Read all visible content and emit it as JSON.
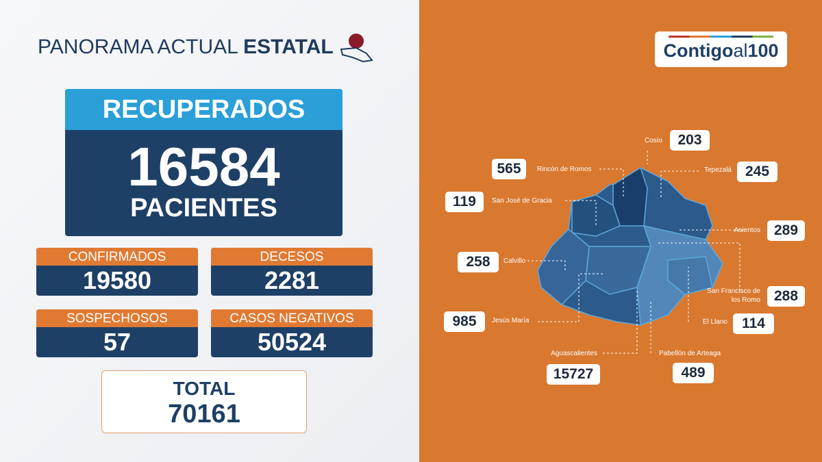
{
  "header": {
    "title_light": "PANORAMA ACTUAL",
    "title_bold": "ESTATAL"
  },
  "recuperados": {
    "label": "RECUPERADOS",
    "value": 16584,
    "unit": "PACIENTES"
  },
  "stats": [
    {
      "label": "CONFIRMADOS",
      "value": 19580
    },
    {
      "label": "DECESOS",
      "value": 2281
    },
    {
      "label": "SOSPECHOSOS",
      "value": 57
    },
    {
      "label": "CASOS NEGATIVOS",
      "value": 50524
    }
  ],
  "total": {
    "label": "TOTAL",
    "value": 70161
  },
  "logo": {
    "parts": [
      "Contigo",
      "al",
      "100"
    ]
  },
  "municipalities": [
    {
      "name": "Cosío",
      "value": 203
    },
    {
      "name": "Rincón de Romos",
      "value": 565
    },
    {
      "name": "Tepezalá",
      "value": 245
    },
    {
      "name": "San José de Gracia",
      "value": 119
    },
    {
      "name": "Asientos",
      "value": 289
    },
    {
      "name": "Calvillo",
      "value": 258
    },
    {
      "name": "San Francisco de los Romo",
      "value": 288
    },
    {
      "name": "Jesús María",
      "value": 985
    },
    {
      "name": "El Llano",
      "value": 114
    },
    {
      "name": "Aguascalientes",
      "value": 15727
    },
    {
      "name": "Pabellón de Arteaga",
      "value": 489
    }
  ]
}
